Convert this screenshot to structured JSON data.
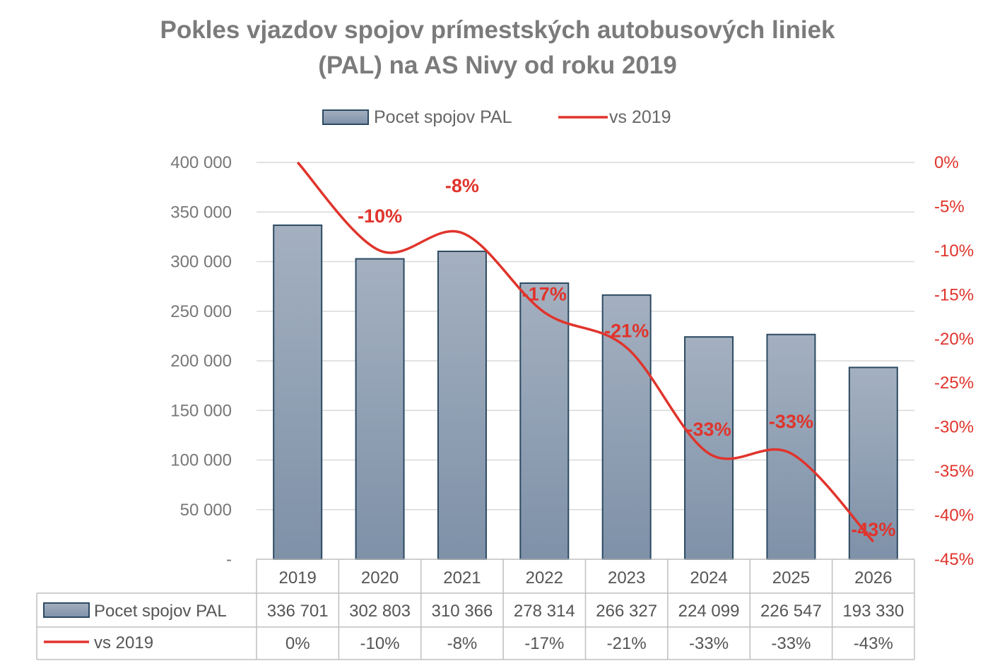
{
  "title_line1": "Pokles vjazdov spojov prímestských autobusových liniek",
  "title_line2": "(PAL) na AS Nivy od roku 2019",
  "colors": {
    "bar_top": "#a4b0c0",
    "bar_bottom": "#7e91a8",
    "bar_stroke": "#2c4a62",
    "line": "#e0342c",
    "axis_text": "#777777",
    "grid": "#d9d9d9"
  },
  "chart_data": {
    "type": "bar",
    "categories": [
      "2019",
      "2020",
      "2021",
      "2022",
      "2023",
      "2024",
      "2025",
      "2026"
    ],
    "series": [
      {
        "name": "Pocet spojov PAL",
        "type": "bar",
        "axis": "left",
        "values": [
          336701,
          302803,
          310366,
          278314,
          266327,
          224099,
          226547,
          193330
        ]
      },
      {
        "name": "vs 2019",
        "type": "line",
        "axis": "right",
        "values": [
          0,
          -10,
          -8,
          -17,
          -21,
          -33,
          -33,
          -43
        ]
      }
    ],
    "table_values": {
      "Pocet spojov PAL": [
        "336 701",
        "302 803",
        "310 366",
        "278 314",
        "266 327",
        "224 099",
        "226 547",
        "193 330"
      ],
      "vs 2019": [
        "0%",
        "-10%",
        "-8%",
        "-17%",
        "-21%",
        "-33%",
        "-33%",
        "-43%"
      ]
    },
    "data_labels": [
      "-10%",
      "-8%",
      "-17%",
      "-21%",
      "-33%",
      "-33%",
      "-43%"
    ],
    "y_ticks": [
      "400 000",
      "350 000",
      "300 000",
      "250 000",
      "200 000",
      "150 000",
      "100 000",
      "50 000",
      "-"
    ],
    "y2_ticks": [
      "0%",
      "-5%",
      "-10%",
      "-15%",
      "-20%",
      "-25%",
      "-30%",
      "-35%",
      "-40%",
      "-45%"
    ],
    "ylim": [
      0,
      400000
    ],
    "y2lim": [
      -45,
      0
    ],
    "legend_position": "top",
    "grid": true
  }
}
